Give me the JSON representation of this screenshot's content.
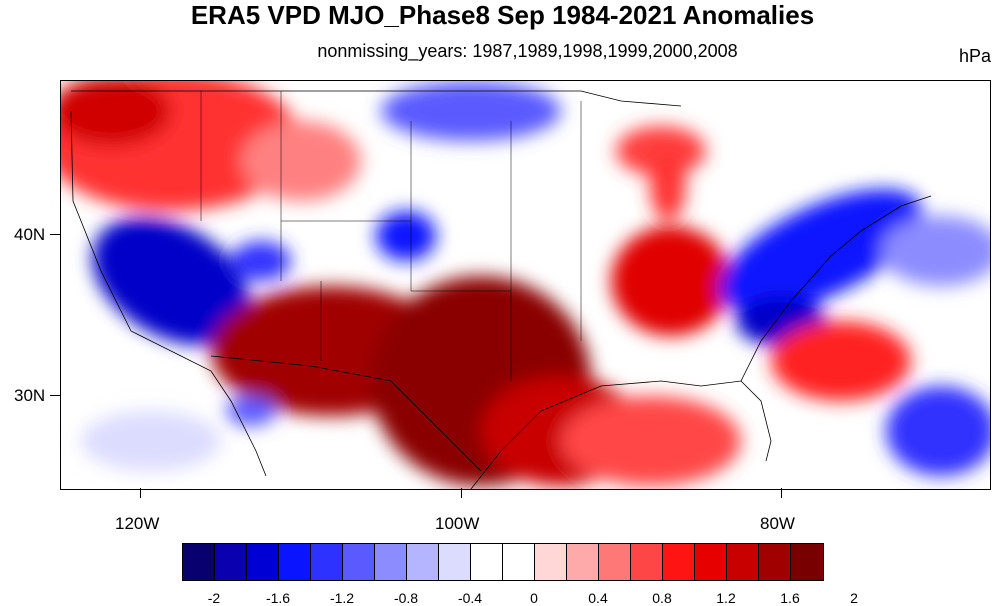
{
  "title": "ERA5 VPD MJO_Phase8 Sep 1984-2021 Anomalies",
  "subtitle": "nonmissing_years: 1987,1989,1998,1999,2000,2008",
  "units": "hPa",
  "axes": {
    "x_labels": [
      "120W",
      "100W",
      "80W"
    ],
    "y_labels": [
      "40N",
      "30N"
    ]
  },
  "colorbar": {
    "labels": [
      "-2",
      "-1.6",
      "-1.2",
      "-0.8",
      "-0.4",
      "0",
      "0.4",
      "0.8",
      "1.2",
      "1.6",
      "2"
    ],
    "colors": [
      "#08006e",
      "#0a00b0",
      "#0000d5",
      "#0a14ff",
      "#2d32ff",
      "#5a5aff",
      "#8c8cff",
      "#b4b4ff",
      "#dcdcff",
      "#ffffff",
      "#ffffff",
      "#ffd7d7",
      "#ffaaaa",
      "#ff7878",
      "#ff4646",
      "#ff1414",
      "#e60000",
      "#c80000",
      "#a00000",
      "#780000"
    ]
  },
  "regions": {
    "dry_anomaly": "#9b0000",
    "strong_positive": "#e8000b",
    "moderate_positive": "#ff6b6b",
    "weak_positive": "#ffc4c4",
    "weak_negative": "#c8c8ff",
    "moderate_negative": "#5a5aff",
    "strong_negative": "#0a0ad6"
  }
}
